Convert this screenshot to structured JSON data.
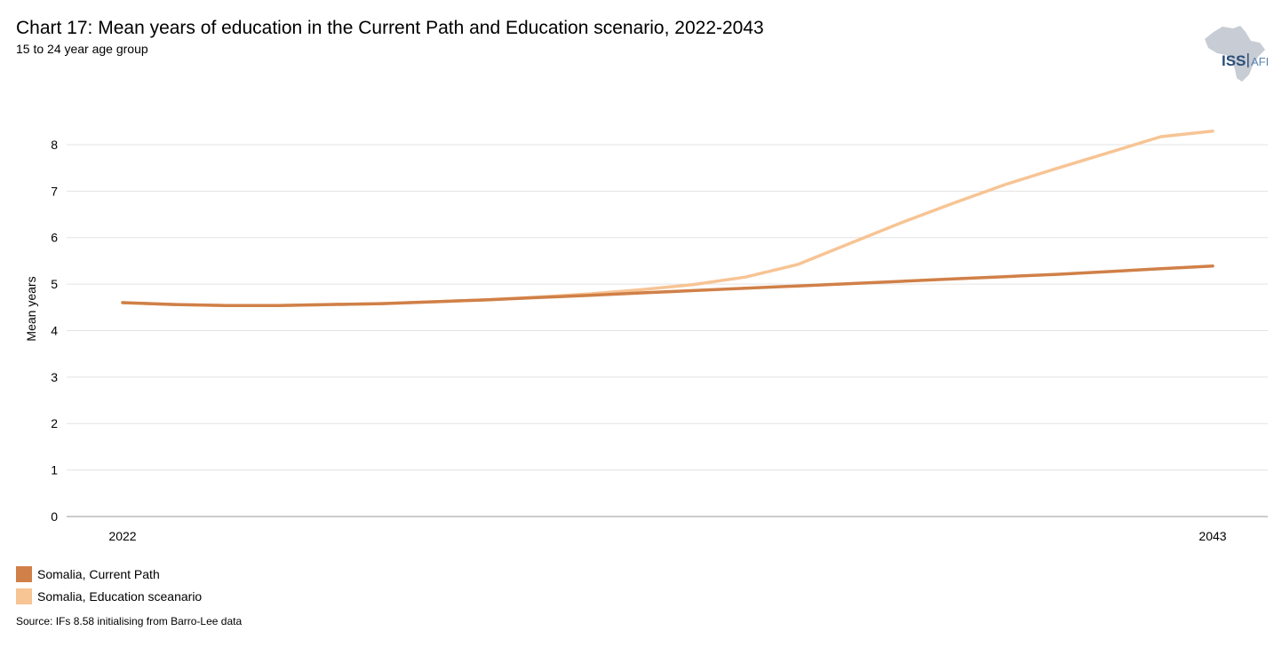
{
  "title": "Chart 17: Mean years of education in the Current Path and Education scenario, 2022-2043",
  "subtitle": "15 to 24 year age group",
  "logo": {
    "text_left": "ISS",
    "text_right": "AFI",
    "brand_color": "#2b4f7a",
    "map_color": "#c8ccd4"
  },
  "source": "Source: IFs 8.58 initialising from Barro-Lee data",
  "chart_data": {
    "type": "line",
    "title": "Chart 17: Mean years of education in the Current Path and Education scenario, 2022-2043",
    "xlabel": "",
    "ylabel": "Mean years",
    "x": [
      2022,
      2023,
      2024,
      2025,
      2026,
      2027,
      2028,
      2029,
      2030,
      2031,
      2032,
      2033,
      2034,
      2035,
      2036,
      2037,
      2038,
      2039,
      2040,
      2041,
      2042,
      2043
    ],
    "x_tick_labels": [
      "2022",
      "2043"
    ],
    "y_ticks": [
      0,
      1,
      2,
      3,
      4,
      5,
      6,
      7,
      8
    ],
    "ylim": [
      0,
      8.4
    ],
    "grid": true,
    "legend_position": "bottom-left",
    "series": [
      {
        "name": "Somalia, Current Path",
        "color": "#d08048",
        "values": [
          4.6,
          4.56,
          4.54,
          4.54,
          4.56,
          4.58,
          4.62,
          4.66,
          4.71,
          4.76,
          4.81,
          4.86,
          4.91,
          4.96,
          5.01,
          5.06,
          5.11,
          5.16,
          5.21,
          5.27,
          5.33,
          5.39
        ]
      },
      {
        "name": "Somalia, Education sceanario",
        "color": "#f7c494",
        "values": [
          4.6,
          4.56,
          4.54,
          4.54,
          4.56,
          4.58,
          4.62,
          4.66,
          4.72,
          4.79,
          4.88,
          4.99,
          5.15,
          5.42,
          5.87,
          6.32,
          6.74,
          7.14,
          7.49,
          7.83,
          8.17,
          8.29
        ]
      }
    ]
  }
}
